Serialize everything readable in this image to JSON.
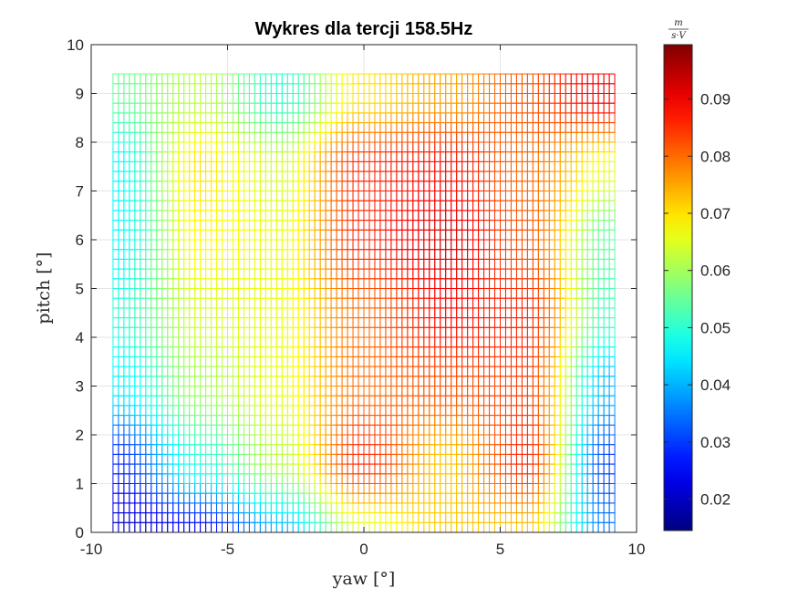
{
  "chart_data": {
    "type": "heatmap",
    "title": "Wykres dla tercji 158.5Hz",
    "xlabel": "yaw [°]",
    "ylabel": "pitch [°]",
    "xlim": [
      -10,
      10
    ],
    "ylim": [
      0,
      10
    ],
    "x_ticks": [
      "-10",
      "-5",
      "0",
      "5",
      "10"
    ],
    "y_ticks": [
      "0",
      "1",
      "2",
      "3",
      "4",
      "5",
      "6",
      "7",
      "8",
      "9",
      "10"
    ],
    "grid": true,
    "colormap": "jet",
    "colorbar": {
      "unit_numerator": "m",
      "unit_denominator": "s·V",
      "range": [
        0.0145,
        0.0995
      ],
      "ticks": [
        "0.02",
        "0.03",
        "0.04",
        "0.05",
        "0.06",
        "0.07",
        "0.08",
        "0.09"
      ]
    },
    "data_extent": {
      "x": [
        -9.2,
        9.2
      ],
      "y": [
        0,
        9.3
      ]
    },
    "grid_step": 0.2,
    "value_field": {
      "x": [
        -9,
        -6,
        -3,
        0,
        3,
        6,
        9
      ],
      "y": [
        0,
        1.5,
        3,
        4.5,
        6,
        7.5,
        9
      ],
      "values": [
        [
          0.02,
          0.024,
          0.04,
          0.064,
          0.072,
          0.072,
          0.035
        ],
        [
          0.028,
          0.05,
          0.062,
          0.086,
          0.072,
          0.086,
          0.03
        ],
        [
          0.045,
          0.06,
          0.066,
          0.08,
          0.082,
          0.084,
          0.04
        ],
        [
          0.05,
          0.064,
          0.066,
          0.08,
          0.088,
          0.086,
          0.052
        ],
        [
          0.046,
          0.068,
          0.066,
          0.086,
          0.092,
          0.082,
          0.054
        ],
        [
          0.046,
          0.07,
          0.064,
          0.086,
          0.088,
          0.08,
          0.066
        ],
        [
          0.055,
          0.062,
          0.05,
          0.07,
          0.075,
          0.082,
          0.09
        ]
      ]
    }
  }
}
